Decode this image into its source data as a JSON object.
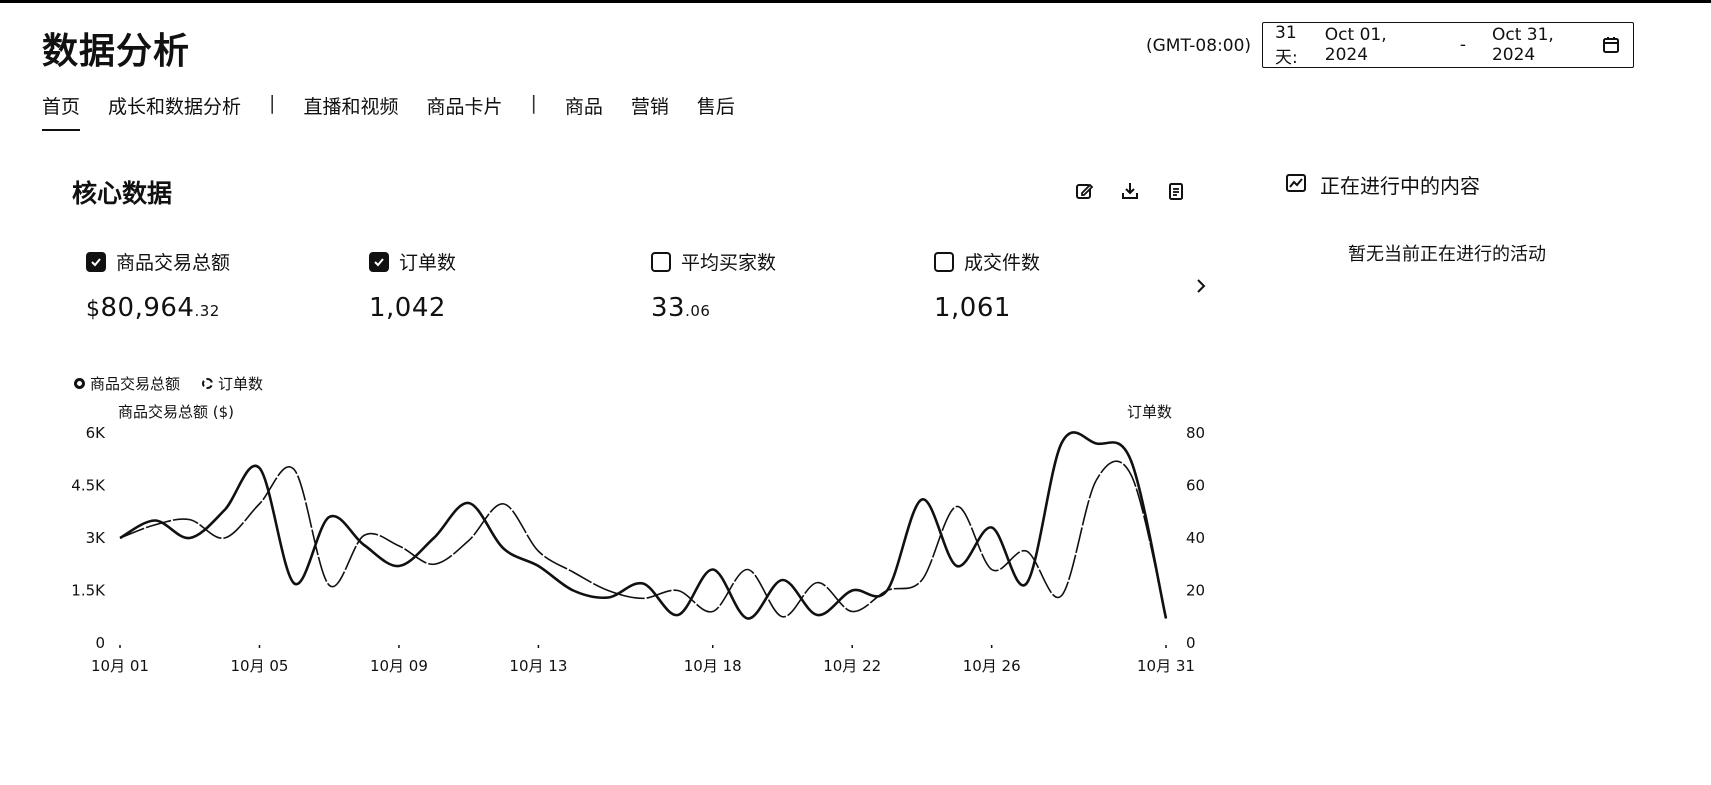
{
  "page": {
    "title": "数据分析"
  },
  "header": {
    "timezone": "(GMT-08:00)",
    "date_range": {
      "label": "31天:",
      "start": "Oct 01, 2024",
      "separator": "-",
      "end": "Oct 31, 2024",
      "icon": "calendar-icon"
    }
  },
  "tabs": [
    {
      "label": "首页",
      "active": true
    },
    {
      "label": "成长和数据分析"
    },
    {
      "label": "直播和视频"
    },
    {
      "label": "商品卡片"
    },
    {
      "label": "商品"
    },
    {
      "label": "营销"
    },
    {
      "label": "售后"
    }
  ],
  "tab_separator": "|",
  "core": {
    "title": "核心数据",
    "tools": [
      "edit-icon",
      "download-icon",
      "clipboard-icon"
    ],
    "next_icon": "chevron-right-icon",
    "metrics": [
      {
        "label": "商品交易总额",
        "checked": true,
        "currency": "$",
        "value_main": "80,964",
        "value_dec": ".32"
      },
      {
        "label": "订单数",
        "checked": true,
        "value_main": "1,042",
        "value_dec": ""
      },
      {
        "label": "平均买家数",
        "checked": false,
        "value_main": "33",
        "value_dec": ".06"
      },
      {
        "label": "成交件数",
        "checked": false,
        "value_main": "1,061",
        "value_dec": ""
      }
    ]
  },
  "legend": [
    {
      "label": "商品交易总额",
      "style": "solid"
    },
    {
      "label": "订单数",
      "style": "dashed"
    }
  ],
  "chart_data": {
    "type": "line",
    "left_axis_label": "商品交易总额 ($)",
    "right_axis_label": "订单数",
    "left_ticks": [
      "0",
      "1.5K",
      "3K",
      "4.5K",
      "6K"
    ],
    "right_ticks": [
      "0",
      "20",
      "40",
      "60",
      "80"
    ],
    "left_ylim": [
      0,
      6000
    ],
    "right_ylim": [
      0,
      80
    ],
    "x_ticks": [
      {
        "day": 1,
        "label": "10月 01"
      },
      {
        "day": 5,
        "label": "10月 05"
      },
      {
        "day": 9,
        "label": "10月 09"
      },
      {
        "day": 13,
        "label": "10月 13"
      },
      {
        "day": 18,
        "label": "10月 18"
      },
      {
        "day": 22,
        "label": "10月 22"
      },
      {
        "day": 26,
        "label": "10月 26"
      },
      {
        "day": 31,
        "label": "10月 31"
      }
    ],
    "series": [
      {
        "name": "商品交易总额",
        "axis": "left",
        "style": "solid",
        "x": [
          1,
          2,
          3,
          4,
          5,
          6,
          7,
          8,
          9,
          10,
          11,
          12,
          13,
          14,
          15,
          16,
          17,
          18,
          19,
          20,
          21,
          22,
          23,
          24,
          25,
          26,
          27,
          28,
          29,
          30,
          31
        ],
        "values": [
          3000,
          3500,
          3000,
          3800,
          5000,
          1700,
          3600,
          2800,
          2200,
          3000,
          4000,
          2700,
          2200,
          1500,
          1300,
          1700,
          800,
          2100,
          700,
          1800,
          800,
          1500,
          1500,
          4100,
          2200,
          3300,
          1700,
          5700,
          5700,
          5200,
          700
        ]
      },
      {
        "name": "订单数",
        "axis": "right",
        "style": "dashed",
        "x": [
          1,
          2,
          3,
          4,
          5,
          6,
          7,
          8,
          9,
          10,
          11,
          12,
          13,
          14,
          15,
          16,
          17,
          18,
          19,
          20,
          21,
          22,
          23,
          24,
          25,
          26,
          27,
          28,
          29,
          30,
          31
        ],
        "values": [
          40,
          45,
          47,
          40,
          53,
          66,
          22,
          41,
          37,
          30,
          39,
          53,
          35,
          27,
          20,
          17,
          20,
          12,
          28,
          10,
          23,
          12,
          20,
          24,
          52,
          28,
          35,
          18,
          62,
          64,
          10
        ]
      }
    ]
  },
  "side": {
    "icon": "trend-chart-icon",
    "title": "正在进行中的内容",
    "empty_text": "暂无当前正在进行的活动"
  }
}
